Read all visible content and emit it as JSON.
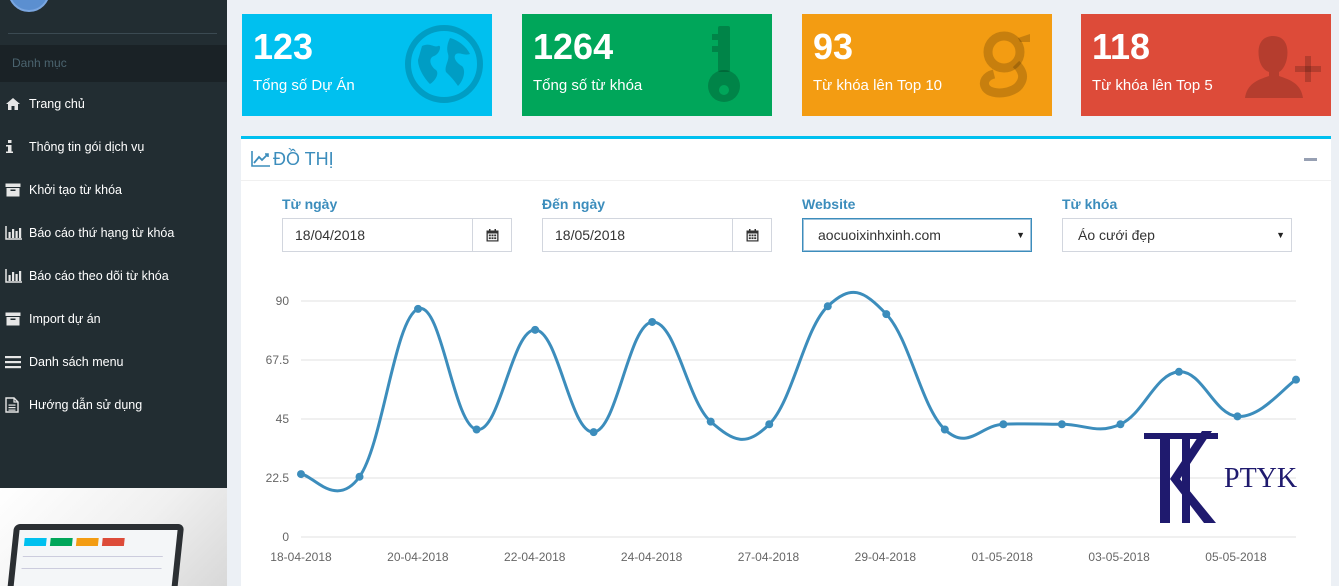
{
  "sidebar": {
    "header": "Danh mục",
    "items": [
      {
        "label": "Trang chủ",
        "icon": "home-icon"
      },
      {
        "label": "Thông tin gói dịch vụ",
        "icon": "info-icon"
      },
      {
        "label": "Khởi tạo từ khóa",
        "icon": "archive-icon"
      },
      {
        "label": "Báo cáo thứ hạng từ khóa",
        "icon": "bar-chart-icon"
      },
      {
        "label": "Báo cáo theo dõi từ khóa",
        "icon": "bar-chart-icon"
      },
      {
        "label": "Import dự án",
        "icon": "archive-icon"
      },
      {
        "label": "Danh sách menu",
        "icon": "list-icon"
      },
      {
        "label": "Hướng dẫn sử dụng",
        "icon": "file-text-icon"
      }
    ]
  },
  "stats": [
    {
      "value": "123",
      "label": "Tổng số Dự Án",
      "color": "#00c0ef",
      "icon": "globe-icon"
    },
    {
      "value": "1264",
      "label": "Tổng số từ khóa",
      "color": "#00a65a",
      "icon": "key-icon"
    },
    {
      "value": "93",
      "label": "Từ khóa lên Top 10",
      "color": "#f39c12",
      "icon": "google-icon"
    },
    {
      "value": "118",
      "label": "Từ khóa lên Top 5",
      "color": "#dd4b39",
      "icon": "user-plus-icon"
    }
  ],
  "chart_box": {
    "title": "ĐỒ THỊ",
    "filters": {
      "from_label": "Từ ngày",
      "from_value": "18/04/2018",
      "to_label": "Đến ngày",
      "to_value": "18/05/2018",
      "website_label": "Website",
      "website_value": "aocuoixinhxinh.com",
      "keyword_label": "Từ khóa",
      "keyword_value": "Áo cưới đẹp"
    }
  },
  "watermark": {
    "text": "PTYK"
  },
  "chart_data": {
    "type": "line",
    "x_tick_labels": [
      "18-04-2018",
      "20-04-2018",
      "22-04-2018",
      "24-04-2018",
      "27-04-2018",
      "29-04-2018",
      "01-05-2018",
      "03-05-2018",
      "05-05-2018"
    ],
    "y_ticks": [
      0,
      22.5,
      45,
      67.5,
      90
    ],
    "ylim": [
      0,
      90
    ],
    "grid": true,
    "line_color": "#3c8dbc",
    "values": [
      24,
      23,
      87,
      41,
      79,
      40,
      82,
      44,
      43,
      88,
      85,
      41,
      43,
      43,
      43,
      63,
      46,
      60
    ]
  }
}
